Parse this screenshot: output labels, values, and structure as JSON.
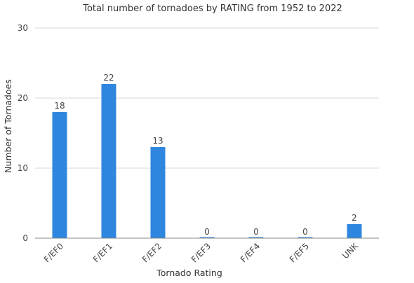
{
  "chart_data": {
    "type": "bar",
    "title": "Total number of tornadoes by RATING from 1952 to 2022",
    "xlabel": "Tornado Rating",
    "ylabel": "Number of Tornadoes",
    "categories": [
      "F/EF0",
      "F/EF1",
      "F/EF2",
      "F/EF3",
      "F/EF4",
      "F/EF5",
      "UNK"
    ],
    "values": [
      18,
      22,
      13,
      0,
      0,
      0,
      2
    ],
    "data_labels": [
      "18",
      "22",
      "13",
      "0",
      "0",
      "0",
      "2"
    ],
    "ylim": [
      0,
      30
    ],
    "yticks": [
      0,
      10,
      20,
      30
    ],
    "grid": true,
    "legend": "none",
    "bar_color": "#2f86de"
  }
}
